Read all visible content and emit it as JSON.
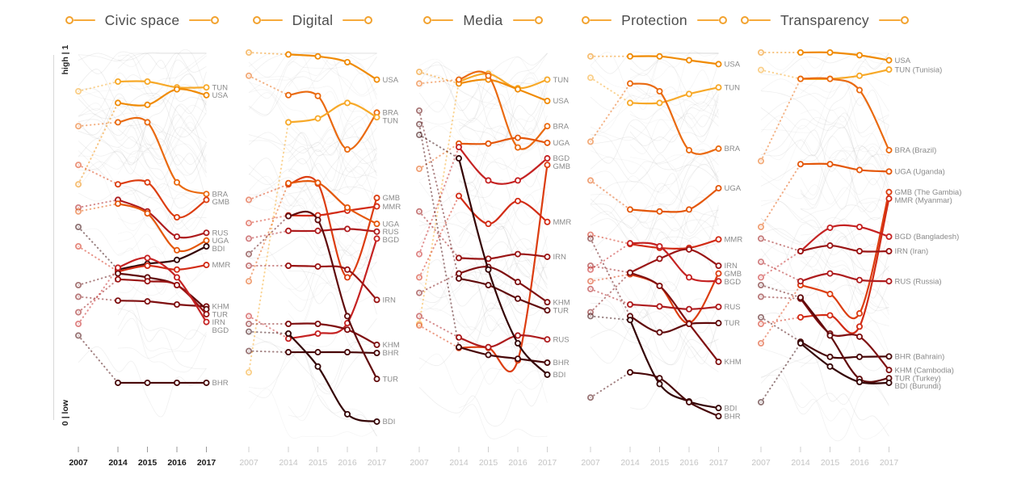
{
  "axis": {
    "top_label": "high | 1",
    "bottom_label": "0 | low",
    "years": [
      "2007",
      "2014",
      "2015",
      "2016",
      "2017"
    ]
  },
  "panels": [
    {
      "title": "Civic space"
    },
    {
      "title": "Digital"
    },
    {
      "title": "Media"
    },
    {
      "title": "Protection"
    },
    {
      "title": "Transparency"
    }
  ],
  "countries": [
    {
      "code": "TUN",
      "name": "Tunisia",
      "color": "#F7A929"
    },
    {
      "code": "USA",
      "name": "",
      "color": "#F08B05"
    },
    {
      "code": "BRA",
      "name": "Brazil",
      "color": "#EA6A10"
    },
    {
      "code": "UGA",
      "name": "Uganda",
      "color": "#E4570A"
    },
    {
      "code": "GMB",
      "name": "The Gambia",
      "color": "#DC3D10"
    },
    {
      "code": "MMR",
      "name": "Myanmar",
      "color": "#D22B15"
    },
    {
      "code": "BGD",
      "name": "Bangladesh",
      "color": "#C52222"
    },
    {
      "code": "RUS",
      "name": "Russia",
      "color": "#AE1C1E"
    },
    {
      "code": "IRN",
      "name": "Iran",
      "color": "#9A1414"
    },
    {
      "code": "KHM",
      "name": "Cambodia",
      "color": "#7F0F10"
    },
    {
      "code": "TUR",
      "name": "Turkey",
      "color": "#600A0B"
    },
    {
      "code": "BHR",
      "name": "Bahrain",
      "color": "#470607"
    },
    {
      "code": "BDI",
      "name": "Burundi",
      "color": "#340405"
    }
  ],
  "chart_data": {
    "type": "line",
    "x_years": [
      2007,
      2014,
      2015,
      2016,
      2017
    ],
    "ylim": [
      0,
      1
    ],
    "grid": false,
    "legend_position": "none",
    "dotted_segment": "2007-2014",
    "background_series_per_panel": 52,
    "last_panel_labels": "code_and_full_name",
    "panels": [
      {
        "title": "Civic space",
        "series": [
          {
            "code": "TUN",
            "values": [
              0.9,
              0.925,
              0.925,
              0.91,
              0.91
            ]
          },
          {
            "code": "USA",
            "values": [
              0.66,
              0.87,
              0.865,
              0.905,
              0.89
            ]
          },
          {
            "code": "BRA",
            "values": [
              0.81,
              0.82,
              0.82,
              0.665,
              0.635
            ]
          },
          {
            "code": "GMB",
            "values": [
              0.71,
              0.66,
              0.665,
              0.575,
              0.62
            ]
          },
          {
            "code": "RUS",
            "values": [
              0.6,
              0.62,
              0.59,
              0.525,
              0.535
            ]
          },
          {
            "code": "UGA",
            "values": [
              0.59,
              0.61,
              0.585,
              0.49,
              0.515
            ]
          },
          {
            "code": "BDI",
            "values": [
              0.55,
              0.44,
              0.455,
              0.465,
              0.5
            ]
          },
          {
            "code": "MMR",
            "values": [
              0.5,
              0.435,
              0.45,
              0.44,
              0.452
            ]
          },
          {
            "code": "KHM",
            "values": [
              0.37,
              0.36,
              0.358,
              0.35,
              0.345
            ]
          },
          {
            "code": "TUR",
            "values": [
              0.4,
              0.43,
              0.42,
              0.4,
              0.338
            ]
          },
          {
            "code": "IRN",
            "values": [
              0.33,
              0.415,
              0.41,
              0.4,
              0.325
            ]
          },
          {
            "code": "BGD",
            "values": [
              0.3,
              0.445,
              0.47,
              0.42,
              0.305
            ]
          },
          {
            "code": "BHR",
            "values": [
              0.27,
              0.148,
              0.148,
              0.148,
              0.148
            ]
          }
        ]
      },
      {
        "title": "Digital",
        "series": [
          {
            "code": "USA",
            "values": [
              1.0,
              0.995,
              0.99,
              0.975,
              0.93
            ]
          },
          {
            "code": "BRA",
            "values": [
              0.94,
              0.89,
              0.888,
              0.75,
              0.845
            ]
          },
          {
            "code": "TUN",
            "values": [
              0.175,
              0.82,
              0.83,
              0.87,
              0.833
            ]
          },
          {
            "code": "GMB",
            "values": [
              0.62,
              0.66,
              0.662,
              0.42,
              0.625
            ]
          },
          {
            "code": "MMR",
            "values": [
              0.56,
              0.58,
              0.58,
              0.592,
              0.603
            ]
          },
          {
            "code": "UGA",
            "values": [
              0.41,
              0.663,
              0.664,
              0.6,
              0.558
            ]
          },
          {
            "code": "RUS",
            "values": [
              0.52,
              0.54,
              0.54,
              0.545,
              0.538
            ]
          },
          {
            "code": "BGD",
            "values": [
              0.32,
              0.262,
              0.275,
              0.302,
              0.52
            ]
          },
          {
            "code": "IRN",
            "values": [
              0.45,
              0.45,
              0.448,
              0.44,
              0.362
            ]
          },
          {
            "code": "KHM",
            "values": [
              0.3,
              0.3,
              0.3,
              0.285,
              0.246
            ]
          },
          {
            "code": "BHR",
            "values": [
              0.23,
              0.227,
              0.227,
              0.227,
              0.225
            ]
          },
          {
            "code": "TUR",
            "values": [
              0.48,
              0.578,
              0.568,
              0.32,
              0.158
            ]
          },
          {
            "code": "BDI",
            "values": [
              0.28,
              0.275,
              0.19,
              0.067,
              0.048
            ]
          }
        ]
      },
      {
        "title": "Media",
        "series": [
          {
            "code": "TUN",
            "values": [
              0.3,
              0.925,
              0.945,
              0.908,
              0.93
            ]
          },
          {
            "code": "USA",
            "values": [
              0.95,
              0.92,
              0.93,
              0.905,
              0.875
            ]
          },
          {
            "code": "BRA",
            "values": [
              0.92,
              0.93,
              0.94,
              0.755,
              0.81
            ]
          },
          {
            "code": "UGA",
            "values": [
              0.7,
              0.765,
              0.765,
              0.78,
              0.767
            ]
          },
          {
            "code": "BGD",
            "values": [
              0.48,
              0.756,
              0.67,
              0.67,
              0.727
            ]
          },
          {
            "code": "GMB",
            "values": [
              0.296,
              0.238,
              0.238,
              0.206,
              0.71
            ]
          },
          {
            "code": "MMR",
            "values": [
              0.42,
              0.63,
              0.558,
              0.617,
              0.563
            ]
          },
          {
            "code": "IRN",
            "values": [
              0.59,
              0.47,
              0.468,
              0.48,
              0.473
            ]
          },
          {
            "code": "KHM",
            "values": [
              0.38,
              0.43,
              0.447,
              0.408,
              0.356
            ]
          },
          {
            "code": "TUR",
            "values": [
              0.85,
              0.417,
              0.4,
              0.365,
              0.335
            ]
          },
          {
            "code": "RUS",
            "values": [
              0.32,
              0.265,
              0.24,
              0.27,
              0.26
            ]
          },
          {
            "code": "BHR",
            "values": [
              0.815,
              0.24,
              0.22,
              0.21,
              0.2
            ]
          },
          {
            "code": "BDI",
            "values": [
              0.7875,
              0.727,
              0.44,
              0.25,
              0.169
            ]
          }
        ]
      },
      {
        "title": "Protection",
        "series": [
          {
            "code": "USA",
            "values": [
              0.99,
              0.99,
              0.99,
              0.98,
              0.97
            ]
          },
          {
            "code": "TUN",
            "values": [
              0.935,
              0.87,
              0.87,
              0.893,
              0.91
            ]
          },
          {
            "code": "BRA",
            "values": [
              0.77,
              0.92,
              0.9,
              0.748,
              0.752
            ]
          },
          {
            "code": "UGA",
            "values": [
              0.67,
              0.595,
              0.59,
              0.595,
              0.65
            ]
          },
          {
            "code": "MMR",
            "values": [
              0.53,
              0.506,
              0.496,
              0.496,
              0.518
            ]
          },
          {
            "code": "IRN",
            "values": [
              0.45,
              0.432,
              0.468,
              0.492,
              0.45
            ]
          },
          {
            "code": "GMB",
            "values": [
              0.41,
              0.428,
              0.398,
              0.302,
              0.43
            ]
          },
          {
            "code": "BGD",
            "values": [
              0.44,
              0.508,
              0.5,
              0.42,
              0.41
            ]
          },
          {
            "code": "RUS",
            "values": [
              0.39,
              0.35,
              0.345,
              0.338,
              0.344
            ]
          },
          {
            "code": "TUR",
            "values": [
              0.52,
              0.32,
              0.278,
              0.3,
              0.302
            ]
          },
          {
            "code": "KHM",
            "values": [
              0.33,
              0.432,
              0.398,
              0.3,
              0.202
            ]
          },
          {
            "code": "BDI",
            "values": [
              0.32,
              0.31,
              0.145,
              0.1,
              0.083
            ]
          },
          {
            "code": "BHR",
            "values": [
              0.11,
              0.175,
              0.16,
              0.098,
              0.062
            ]
          }
        ]
      },
      {
        "title": "Transparency",
        "series": [
          {
            "code": "USA",
            "values": [
              1.0,
              1.0,
              1.0,
              0.993,
              0.98
            ]
          },
          {
            "code": "TUN",
            "values": [
              0.955,
              0.932,
              0.932,
              0.94,
              0.956
            ]
          },
          {
            "code": "BRA",
            "values": [
              0.72,
              0.932,
              0.932,
              0.903,
              0.748
            ]
          },
          {
            "code": "UGA",
            "values": [
              0.55,
              0.712,
              0.712,
              0.697,
              0.693
            ]
          },
          {
            "code": "GMB",
            "values": [
              0.25,
              0.4,
              0.377,
              0.327,
              0.64
            ]
          },
          {
            "code": "MMR",
            "values": [
              0.3,
              0.317,
              0.322,
              0.293,
              0.623
            ]
          },
          {
            "code": "BGD",
            "values": [
              0.42,
              0.4875,
              0.548,
              0.55,
              0.525
            ]
          },
          {
            "code": "IRN",
            "values": [
              0.52,
              0.4875,
              0.502,
              0.4875,
              0.4875
            ]
          },
          {
            "code": "RUS",
            "values": [
              0.46,
              0.41,
              0.43,
              0.413,
              0.41
            ]
          },
          {
            "code": "BHR",
            "values": [
              0.317,
              0.254,
              0.215,
              0.215,
              0.216
            ]
          },
          {
            "code": "KHM",
            "values": [
              0.37,
              0.365,
              0.275,
              0.267,
              0.181
            ]
          },
          {
            "code": "TUR",
            "values": [
              0.4,
              0.368,
              0.27,
              0.158,
              0.16
            ]
          },
          {
            "code": "BDI",
            "values": [
              0.098,
              0.25,
              0.19,
              0.15,
              0.148
            ]
          }
        ]
      }
    ]
  }
}
